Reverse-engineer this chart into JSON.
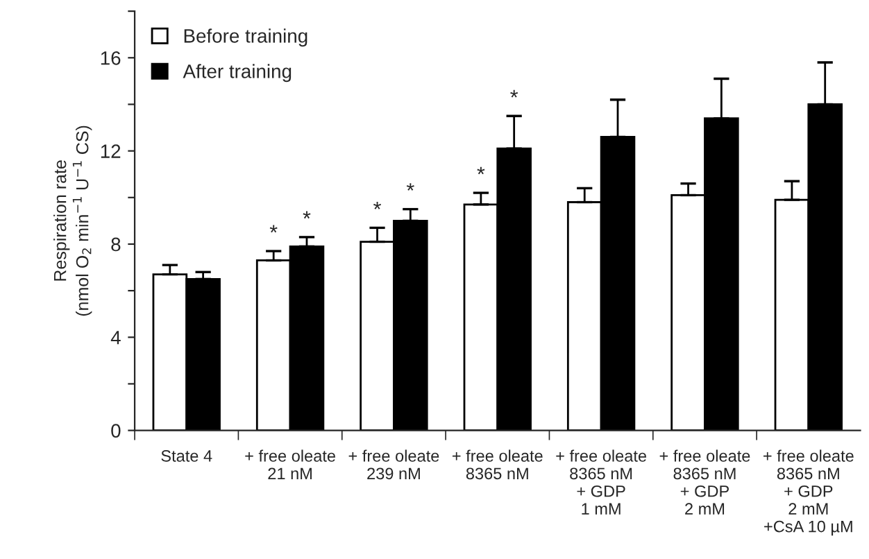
{
  "chart_data": {
    "type": "bar",
    "ylabel": "Respiration rate\n(nmol O$_{2}$ min$^{−1}$ U$^{−1}$ CS)",
    "categories": [
      "State 4",
      "+ free oleate\n21 nM",
      "+ free oleate\n239 nM",
      "+ free oleate\n8365 nM",
      "+ free oleate\n8365 nM\n+ GDP\n1 mM",
      "+ free oleate\n8365 nM\n+ GDP\n2 mM",
      "+ free oleate\n8365 nM\n+ GDP\n2 mM\n+CsA 10 µM"
    ],
    "series": [
      {
        "name": "Before training",
        "color": "#ffffff",
        "values": [
          6.7,
          7.3,
          8.1,
          9.7,
          9.8,
          10.1,
          9.9
        ],
        "errors": [
          [
            6.7,
            7.1
          ],
          [
            7.3,
            7.7
          ],
          [
            8.1,
            8.7
          ],
          [
            9.7,
            10.2
          ],
          [
            9.8,
            10.4
          ],
          [
            10.1,
            10.6
          ],
          [
            9.9,
            10.7
          ]
        ],
        "value_labels": [
          null,
          "*",
          "*",
          "*",
          null,
          null,
          null
        ]
      },
      {
        "name": "After training",
        "color": "#000000",
        "values": [
          6.5,
          7.9,
          9.0,
          12.1,
          12.6,
          13.4,
          14.0
        ],
        "errors": [
          [
            6.5,
            6.8
          ],
          [
            7.9,
            8.3
          ],
          [
            9.0,
            9.5
          ],
          [
            12.1,
            13.5
          ],
          [
            12.6,
            14.2
          ],
          [
            13.4,
            15.1
          ],
          [
            14.0,
            15.8
          ]
        ],
        "value_labels": [
          null,
          "*",
          "*",
          "*",
          null,
          null,
          null
        ]
      }
    ],
    "ylim": [
      0,
      18
    ],
    "yticks": [
      0,
      {
        "value": 2,
        "label": null
      },
      4,
      {
        "value": 6,
        "label": null
      },
      8,
      {
        "value": 10,
        "label": null
      },
      12,
      {
        "value": 14,
        "label": null
      },
      16,
      {
        "value": 18,
        "label": null
      }
    ],
    "grid": false,
    "legend": "top left"
  }
}
